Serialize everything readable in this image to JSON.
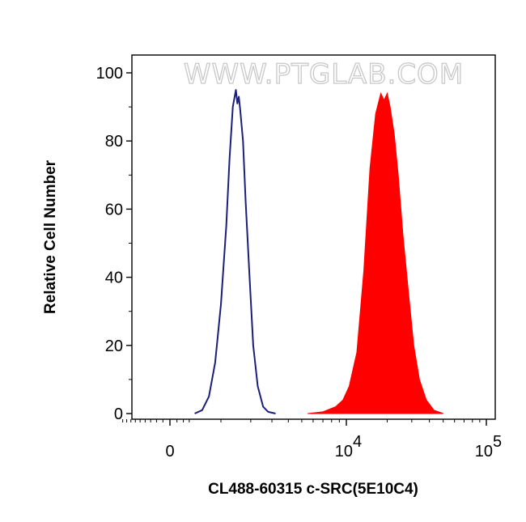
{
  "watermark": "WWW.PTGLAB.COM",
  "chart_data": {
    "type": "area",
    "title": "",
    "xlabel": "CL488-60315 c-SRC(5E10C4)",
    "ylabel": "Relative Cell Number",
    "x_scale": "biexponential",
    "xlim": [
      -1000,
      110000
    ],
    "ylim": [
      0,
      100
    ],
    "y_ticks": [
      0,
      20,
      40,
      60,
      80,
      100
    ],
    "x_ticks": [
      {
        "value": 0,
        "label": "0",
        "exp": ""
      },
      {
        "value": 10000,
        "label": "10",
        "exp": "4"
      },
      {
        "value": 100000,
        "label": "10",
        "exp": "5"
      }
    ],
    "grid": false,
    "series": [
      {
        "style": "outline",
        "color": "#1a1f7a",
        "x": [
          400,
          550,
          700,
          850,
          1000,
          1150,
          1250,
          1350,
          1450,
          1500,
          1550,
          1600,
          1700,
          1800,
          1950,
          2100,
          2300,
          2550,
          2800,
          3200
        ],
        "y": [
          0,
          1,
          5,
          15,
          32,
          55,
          75,
          90,
          95,
          91,
          93,
          89,
          80,
          62,
          40,
          20,
          8,
          2,
          0.5,
          0
        ]
      },
      {
        "style": "filled",
        "color": "#ff0000",
        "x": [
          5500,
          7000,
          8500,
          9500,
          10500,
          12000,
          13500,
          15000,
          16500,
          18000,
          19000,
          20000,
          21000,
          22500,
          24000,
          26000,
          28500,
          31000,
          34000,
          38000,
          43000,
          50000
        ],
        "y": [
          0,
          0.5,
          2,
          4,
          8,
          18,
          42,
          72,
          88,
          94,
          92,
          94,
          90,
          82,
          70,
          52,
          35,
          20,
          10,
          4,
          1,
          0
        ]
      }
    ]
  }
}
